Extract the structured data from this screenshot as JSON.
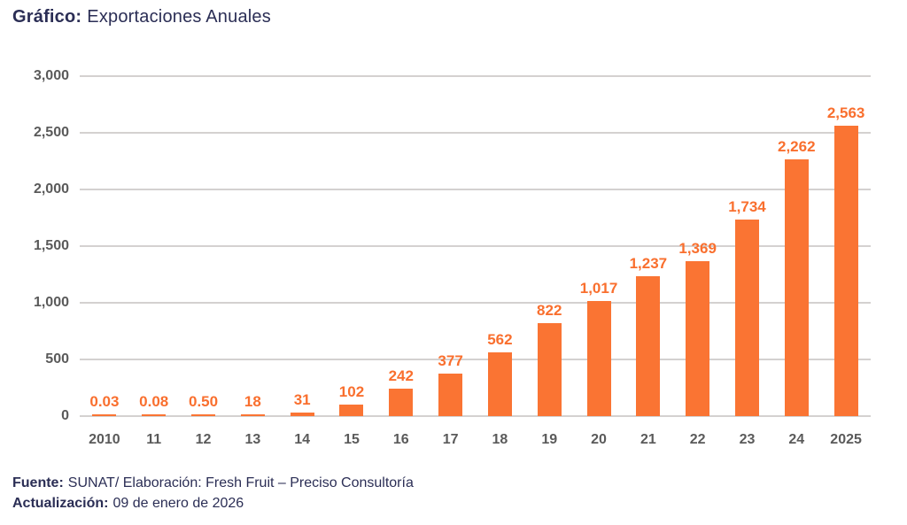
{
  "title": {
    "prefix": "Gráfico:",
    "text": "Exportaciones Anuales"
  },
  "footer": {
    "source_label": "Fuente:",
    "source_text": "SUNAT/ Elaboración: Fresh Fruit – Preciso Consultoría",
    "updated_label": "Actualización:",
    "updated_text": "09 de enero de 2026"
  },
  "colors": {
    "bar": "#FA7433",
    "value_label": "#F96F2E",
    "title_text": "#2B2E55",
    "axis_text": "#5A5A5A",
    "gridline": "#D4D1D0",
    "background": "#FFFFFF"
  },
  "chart_data": {
    "type": "bar",
    "title": "Exportaciones Anuales",
    "categories": [
      "2010",
      "11",
      "12",
      "13",
      "14",
      "15",
      "16",
      "17",
      "18",
      "19",
      "20",
      "21",
      "22",
      "23",
      "24",
      "2025"
    ],
    "values": [
      0.03,
      0.08,
      0.5,
      18,
      31,
      102,
      242,
      377,
      562,
      822,
      1017,
      1237,
      1369,
      1734,
      2262,
      2563
    ],
    "value_labels": [
      "0.03",
      "0.08",
      "0.50",
      "18",
      "31",
      "102",
      "242",
      "377",
      "562",
      "822",
      "1,017",
      "1,237",
      "1,369",
      "1,734",
      "2,262",
      "2,563"
    ],
    "xlabel": "",
    "ylabel": "",
    "ylim": [
      0,
      3000
    ],
    "ytick_interval": 500,
    "ytick_labels": [
      "3,000",
      "2,500",
      "2,000",
      "1,500",
      "1,000",
      "500",
      "0"
    ],
    "grid": true,
    "legend": false
  }
}
